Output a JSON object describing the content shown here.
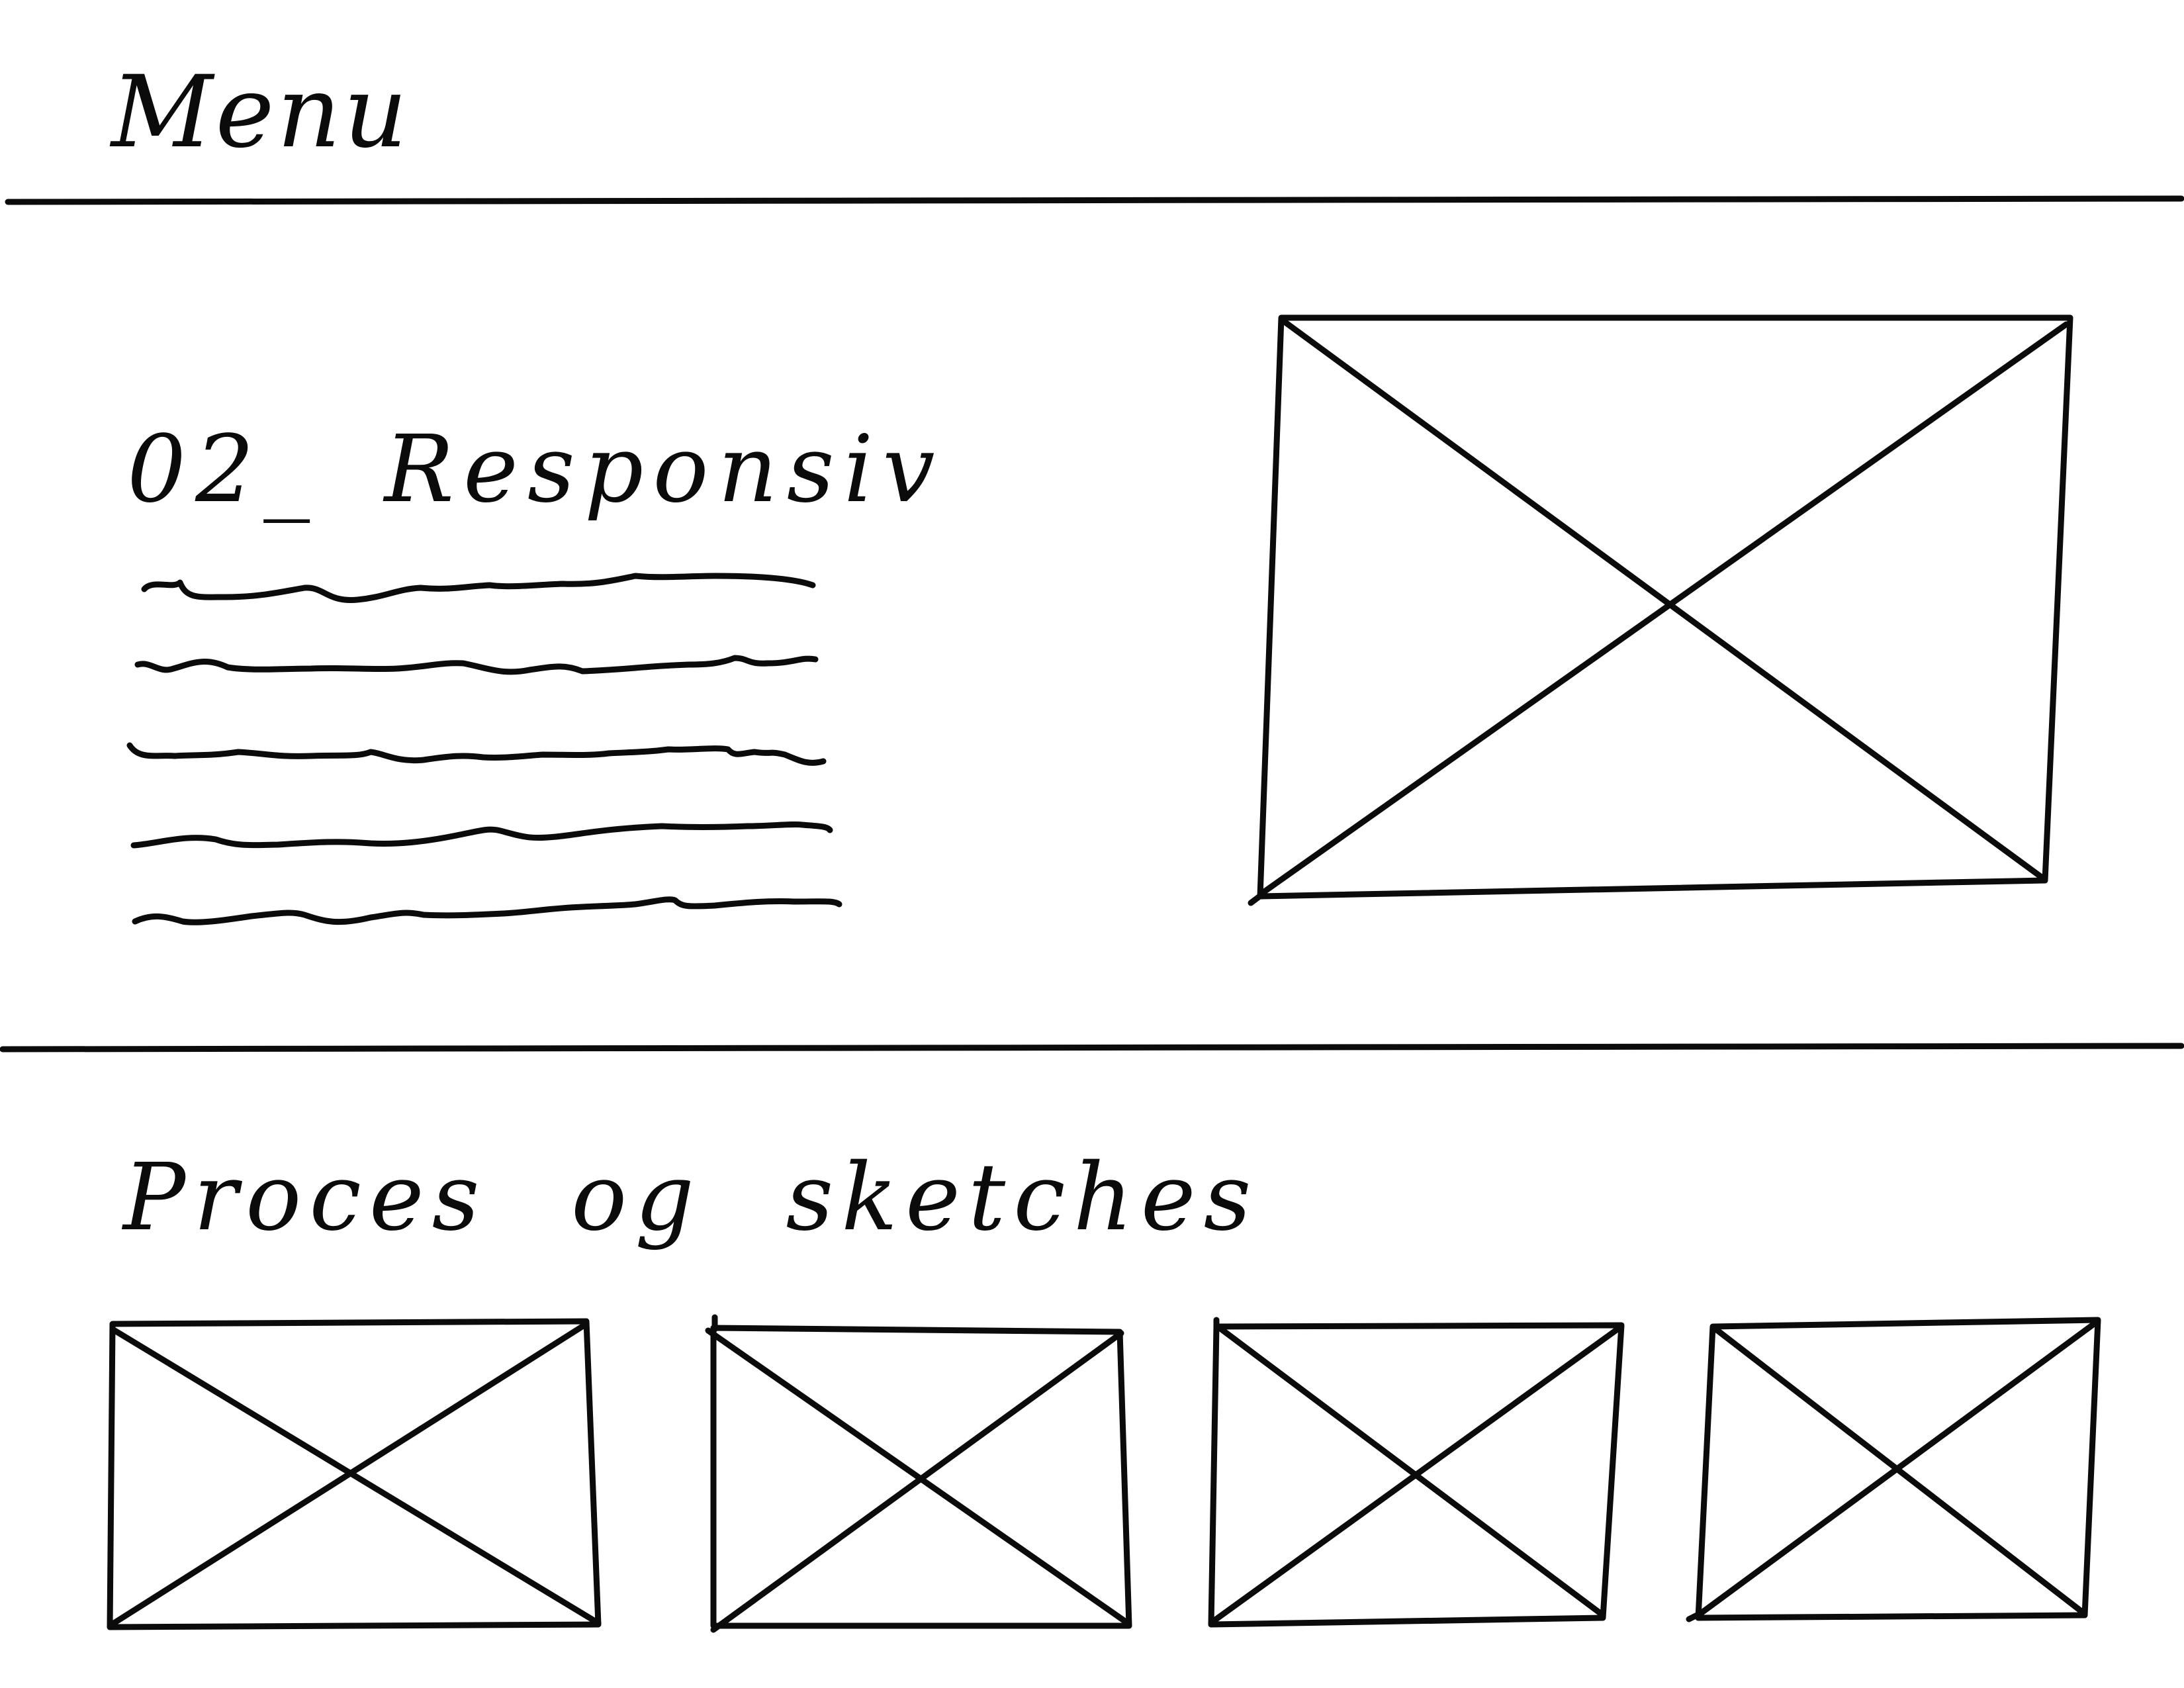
{
  "menu": {
    "label": "Menu"
  },
  "hero": {
    "title": "02_ Responsiv",
    "text_lines": 5,
    "image_placeholder": "image-placeholder"
  },
  "gallery": {
    "title": "Proces og sketches",
    "thumbnails": 4
  }
}
